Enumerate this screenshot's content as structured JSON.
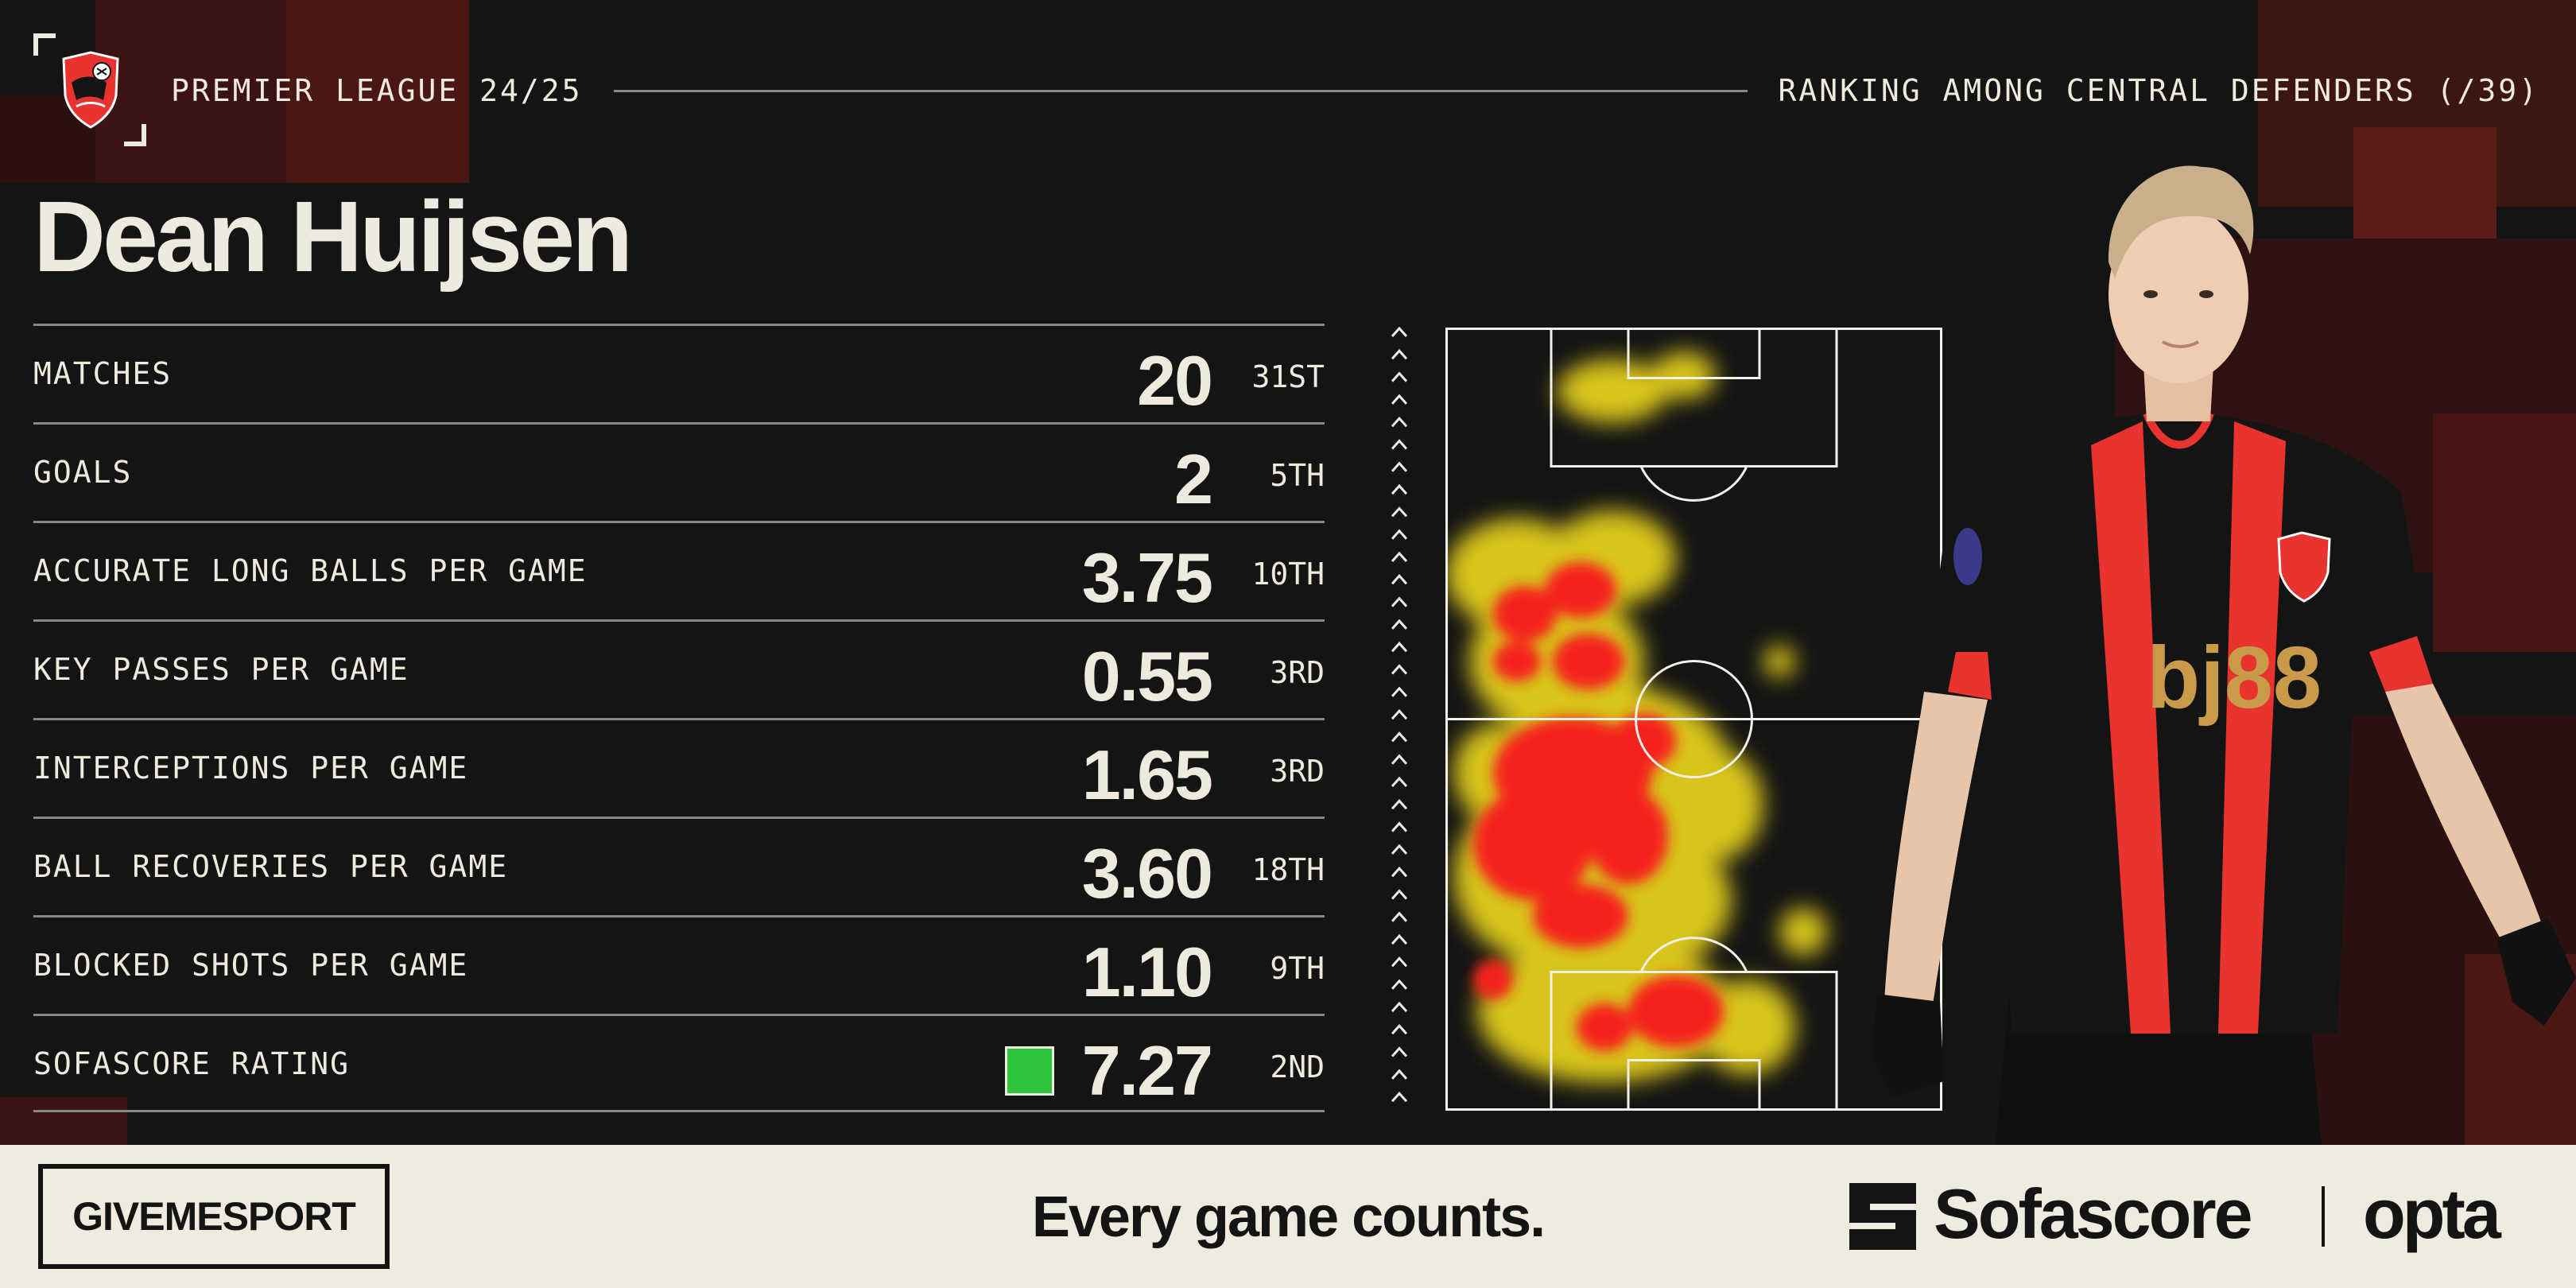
{
  "header": {
    "league": "PREMIER LEAGUE 24/25",
    "ranking_context": "RANKING AMONG CENTRAL DEFENDERS (/39)",
    "club_crest_icon": "afc-bournemouth-crest"
  },
  "player": {
    "name": "Dean Huijsen"
  },
  "stats": [
    {
      "label": "MATCHES",
      "value": "20",
      "rank": "31ST"
    },
    {
      "label": "GOALS",
      "value": "2",
      "rank": "5TH"
    },
    {
      "label": "ACCURATE LONG BALLS PER GAME",
      "value": "3.75",
      "rank": "10TH"
    },
    {
      "label": "KEY PASSES PER GAME",
      "value": "0.55",
      "rank": "3RD"
    },
    {
      "label": "INTERCEPTIONS PER GAME",
      "value": "1.65",
      "rank": "3RD"
    },
    {
      "label": "BALL RECOVERIES PER GAME",
      "value": "3.60",
      "rank": "18TH"
    },
    {
      "label": "BLOCKED SHOTS PER GAME",
      "value": "1.10",
      "rank": "9TH"
    },
    {
      "label": "SOFASCORE RATING",
      "value": "7.27",
      "rank": "2ND"
    }
  ],
  "rating_color": "#2ec53d",
  "colors": {
    "background": "#141414",
    "text": "#eeeadd",
    "footer_background": "#efebdf",
    "heat_hot": "#f5221c",
    "heat_warm": "#fbe31c",
    "kit_red": "#e8332e"
  },
  "icons": {
    "direction_arrow": "chevron-up-icon",
    "sofascore_logo": "sofascore-logo-icon"
  },
  "footer": {
    "publisher": "GIVEMESPORT",
    "tagline": "Every game counts.",
    "brand": "Sofascore",
    "partner": "opta"
  }
}
